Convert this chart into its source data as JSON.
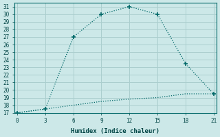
{
  "xlabel": "Humidex (Indice chaleur)",
  "background_color": "#cce8e8",
  "grid_color": "#aacece",
  "line_color": "#006868",
  "line1_x": [
    0,
    3,
    6,
    9,
    12,
    15,
    18,
    21
  ],
  "line1_y": [
    17,
    17.5,
    27,
    30,
    31,
    30,
    23.5,
    19.5
  ],
  "line2_x": [
    0,
    3,
    6,
    9,
    12,
    15,
    18,
    21
  ],
  "line2_y": [
    17,
    17.5,
    18.0,
    18.5,
    18.8,
    19.0,
    19.5,
    19.5
  ],
  "xlim": [
    -0.3,
    21.3
  ],
  "ylim": [
    17,
    31.5
  ],
  "xticks": [
    0,
    3,
    6,
    9,
    12,
    15,
    18,
    21
  ],
  "yticks": [
    17,
    18,
    19,
    20,
    21,
    22,
    23,
    24,
    25,
    26,
    27,
    28,
    29,
    30,
    31
  ]
}
